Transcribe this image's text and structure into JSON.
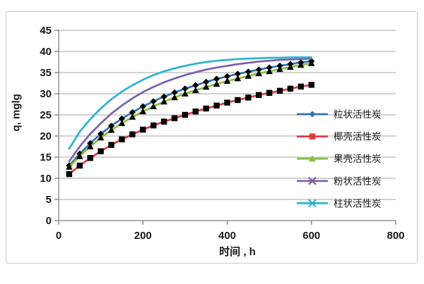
{
  "chart_data": {
    "type": "line",
    "title": "",
    "xlabel": "时间 , h",
    "ylabel": "q, mglg",
    "xlim": [
      0,
      800
    ],
    "ylim": [
      0,
      45
    ],
    "x_ticks": [
      0,
      200,
      400,
      600,
      800
    ],
    "y_ticks": [
      0,
      5,
      10,
      15,
      20,
      25,
      30,
      35,
      40,
      45
    ],
    "grid": "horizontal",
    "legend_position": "right-inside",
    "x": [
      25,
      50,
      75,
      100,
      125,
      150,
      175,
      200,
      225,
      250,
      275,
      300,
      325,
      350,
      375,
      400,
      425,
      450,
      475,
      500,
      525,
      550,
      575,
      600
    ],
    "series": [
      {
        "name": "粒状活性炭",
        "marker": "diamond",
        "color": "#2E75B6",
        "values": [
          13.0,
          15.8,
          18.3,
          20.5,
          22.4,
          24.1,
          25.6,
          27.0,
          28.2,
          29.3,
          30.3,
          31.2,
          32.0,
          32.8,
          33.5,
          34.1,
          34.7,
          35.2,
          35.7,
          36.2,
          36.6,
          37.0,
          37.4,
          37.7
        ]
      },
      {
        "name": "椰壳活性炭",
        "marker": "square",
        "color": "#DC3C3C",
        "values": [
          11.0,
          13.0,
          14.8,
          16.4,
          17.9,
          19.2,
          20.4,
          21.5,
          22.5,
          23.4,
          24.2,
          25.0,
          25.8,
          26.5,
          27.2,
          27.9,
          28.5,
          29.1,
          29.7,
          30.2,
          30.7,
          31.2,
          31.7,
          32.1
        ]
      },
      {
        "name": "果壳活性炭",
        "marker": "triangle",
        "color": "#8DBB40",
        "values": [
          12.7,
          15.2,
          17.5,
          19.6,
          21.4,
          23.0,
          24.5,
          25.8,
          27.0,
          28.1,
          29.1,
          30.0,
          30.8,
          31.6,
          32.3,
          33.0,
          33.6,
          34.2,
          34.8,
          35.3,
          35.8,
          36.3,
          36.8,
          37.2
        ]
      },
      {
        "name": "粉状活性炭",
        "marker": "x",
        "color": "#7D5FA9",
        "values": [
          14.0,
          17.5,
          20.5,
          23.0,
          25.3,
          27.2,
          28.9,
          30.4,
          31.6,
          32.7,
          33.6,
          34.4,
          35.1,
          35.7,
          36.2,
          36.6,
          37.0,
          37.3,
          37.6,
          37.8,
          38.0,
          38.1,
          38.2,
          38.3
        ]
      },
      {
        "name": "柱状活性炭",
        "marker": "asterisk",
        "color": "#29B5D0",
        "values": [
          17.0,
          21.0,
          24.0,
          26.5,
          28.7,
          30.5,
          32.0,
          33.3,
          34.4,
          35.3,
          36.0,
          36.6,
          37.1,
          37.5,
          37.8,
          38.0,
          38.2,
          38.3,
          38.4,
          38.5,
          38.5,
          38.6,
          38.6,
          38.6
        ]
      }
    ],
    "colors": {
      "grid": "#A3A3A3",
      "axis": "#7F7F7F",
      "text": "#1a1a1a",
      "frame": "#C9C9C9"
    }
  }
}
